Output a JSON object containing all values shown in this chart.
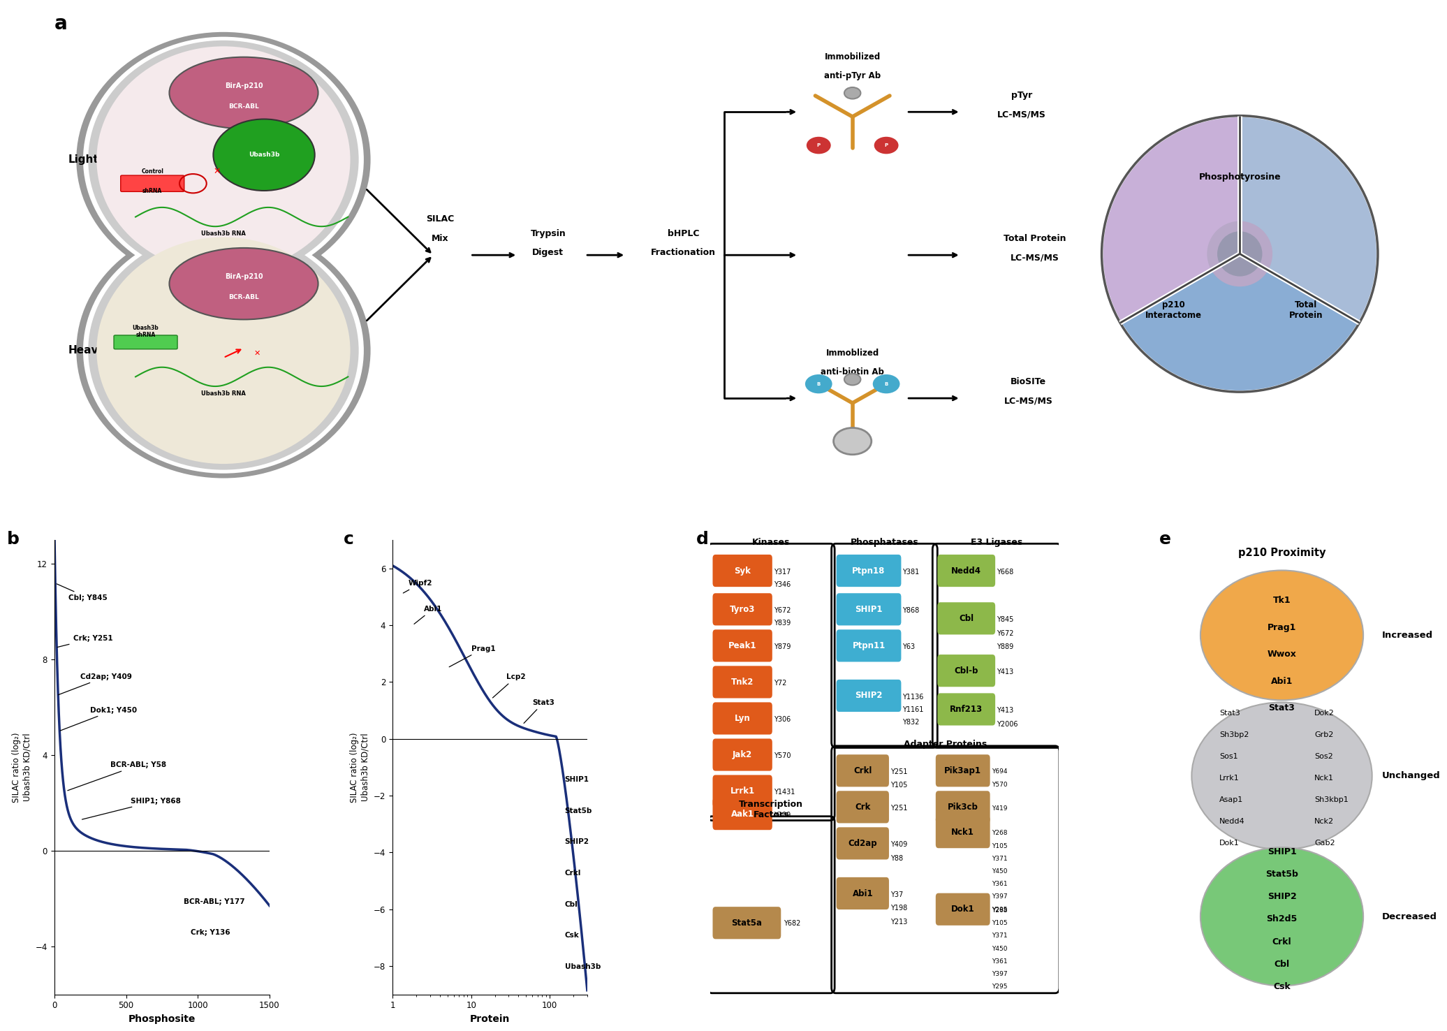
{
  "panel_b": {
    "xlabel": "Phosphosite",
    "ylabel": "SILAC ratio (log₂)\nUbash3b KD/Ctrl",
    "ylim": [
      -6,
      13
    ],
    "xlim": [
      0,
      1500
    ],
    "xticks": [
      0,
      500,
      1000,
      1500
    ],
    "yticks": [
      -4,
      0,
      4,
      8,
      12
    ],
    "curve_color": "#1a2f7a"
  },
  "panel_c": {
    "xlabel": "Protein",
    "ylabel": "SILAC ratio (log₂)\nUbash3b KD/Ctrl",
    "ylim": [
      -9,
      7
    ],
    "xlim": [
      1,
      300
    ],
    "yticks": [
      -8,
      -6,
      -4,
      -2,
      0,
      2,
      4,
      6
    ],
    "curve_color": "#1a2f7a"
  },
  "kinase_color": "#e05a1a",
  "phosphatase_color": "#3eaed1",
  "e3_color": "#8db84a",
  "adapter_color": "#b5894c",
  "tf_color": "#b5894c",
  "pie_colors": [
    "#c8b0d8",
    "#8aadd4",
    "#a8bcd8"
  ],
  "increased_color": "#f0a84a",
  "unchanged_color": "#c8c8cc",
  "decreased_color": "#78c878"
}
